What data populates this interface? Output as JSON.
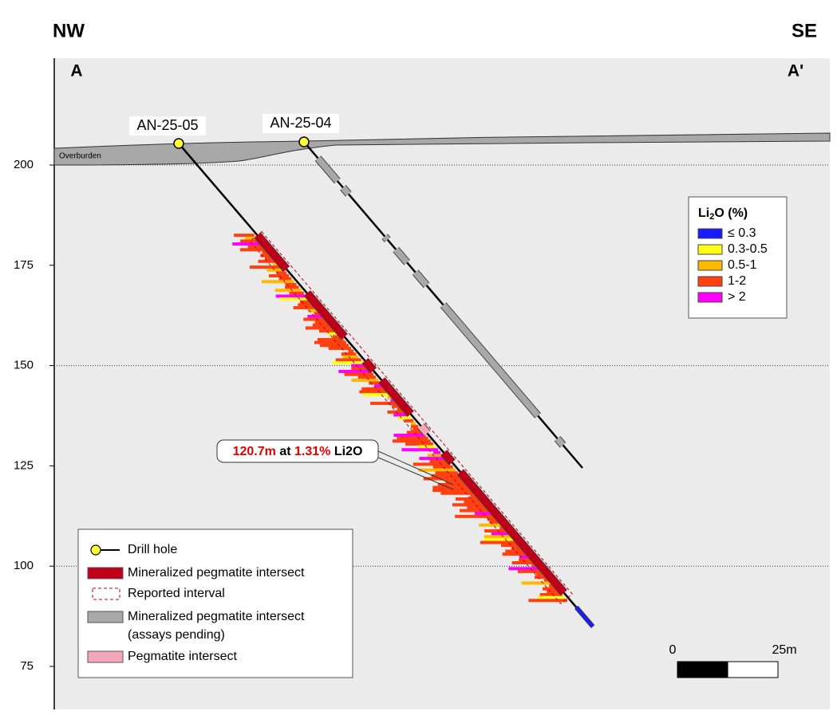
{
  "header": {
    "left": "NW",
    "right": "SE"
  },
  "section": {
    "start": "A",
    "end": "A'"
  },
  "elevation_axis": {
    "ticks": [
      75,
      100,
      125,
      150,
      175,
      200
    ]
  },
  "overburden": "Overburden",
  "drill_holes": [
    {
      "label": "AN-25-05"
    },
    {
      "label": "AN-25-04"
    }
  ],
  "annotation": {
    "parts": [
      "120.7m",
      " at ",
      "1.31%",
      " Li2O"
    ]
  },
  "grade_legend": {
    "title_parts": [
      "Li",
      "2",
      "O (%)"
    ],
    "items": [
      {
        "label": "≤ 0.3",
        "color": "#1a1aff"
      },
      {
        "label": "0.3-0.5",
        "color": "#ffff1a"
      },
      {
        "label": "0.5-1",
        "color": "#ffb800"
      },
      {
        "label": "1-2",
        "color": "#ff4010"
      },
      {
        "label": "> 2",
        "color": "#ff00ff"
      }
    ]
  },
  "legend": {
    "items": [
      "Drill hole",
      "Mineralized pegmatite intersect",
      "Reported interval",
      "Mineralized pegmatite intersect",
      "(assays pending)",
      "Pegmatite intersect"
    ]
  },
  "scale_bar": {
    "start": "0",
    "end": "25m"
  }
}
